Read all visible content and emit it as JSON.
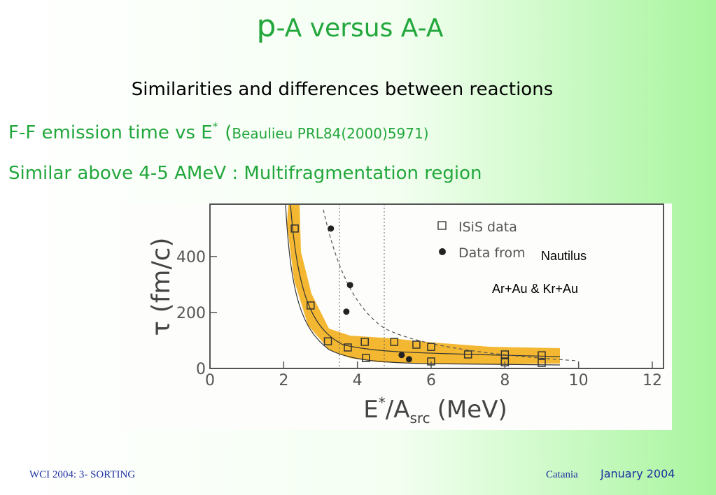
{
  "header": {
    "title_first": "p",
    "title_rest": "-A versus A-A",
    "subtitle": "Similarities and differences between reactions"
  },
  "lines": [
    {
      "text": "F-F emission time vs E",
      "sup": "*",
      "ref_open": "(",
      "ref": "Beaulieu PRL84(2000)5971)"
    },
    {
      "text": "Similar above 4-5 AMeV : Multifragmentation region"
    }
  ],
  "chart_data": {
    "type": "scatter",
    "y_label": "τ (fm/c)",
    "x_label": {
      "base": "E",
      "sup": "*",
      "mid": "/A",
      "sub": "src",
      "unit": "(MeV)"
    },
    "xlim": [
      0,
      12
    ],
    "xticks": [
      0,
      2,
      4,
      6,
      8,
      10,
      12
    ],
    "ylim": [
      0,
      587
    ],
    "yticks": [
      0,
      200,
      400
    ],
    "series": [
      {
        "name": "ISiS data",
        "marker": "open-square",
        "color": "#333333",
        "x": [
          2.3,
          2.73,
          3.2,
          3.74,
          4.2,
          4.23,
          5.0,
          5.6,
          6.0,
          6.0,
          7.0,
          8.0,
          8.0,
          9.0,
          9.0
        ],
        "values": [
          500,
          225,
          97,
          75,
          95,
          37,
          95,
          85,
          77,
          25,
          50,
          50,
          22,
          47,
          20
        ]
      },
      {
        "name": "Data from",
        "marker": "filled-circle",
        "color": "#222222",
        "x": [
          3.28,
          3.8,
          3.7,
          5.2,
          5.4
        ],
        "values": [
          500,
          298,
          203,
          48,
          33
        ]
      }
    ],
    "legend_extra": [
      "Nautilus",
      "Ar+Au & Kr+Au"
    ]
  },
  "footer": {
    "left": "WCI 2004: 3- SORTING",
    "place": "Catania",
    "date": "January 2004"
  }
}
